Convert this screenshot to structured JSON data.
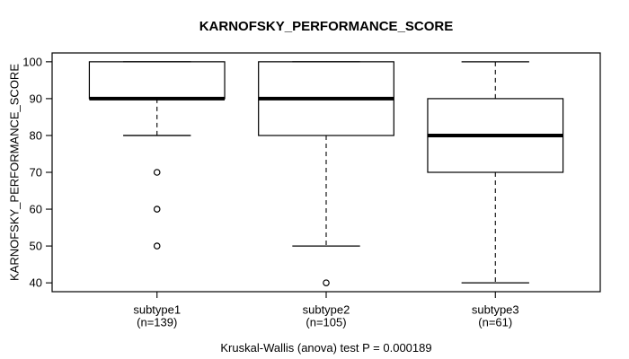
{
  "chart_data": {
    "type": "boxplot",
    "title": "KARNOFSKY_PERFORMANCE_SCORE",
    "ylabel": "KARNOFSKY_PERFORMANCE_SCORE",
    "xlabel": "",
    "caption": "Kruskal-Wallis (anova) test P = 0.000189",
    "y_ticks": [
      40,
      50,
      60,
      70,
      80,
      90,
      100
    ],
    "ylim": [
      40,
      100
    ],
    "axis_pad_frac": 0.04,
    "grid": false,
    "legend": null,
    "groups": [
      {
        "label": "subtype1",
        "sublabel": "(n=139)",
        "n": 139,
        "q1": 90,
        "median": 90,
        "q3": 100,
        "whisker_low": 80,
        "whisker_high": 100,
        "outliers": [
          70,
          60,
          50
        ]
      },
      {
        "label": "subtype2",
        "sublabel": "(n=105)",
        "n": 105,
        "q1": 80,
        "median": 90,
        "q3": 100,
        "whisker_low": 50,
        "whisker_high": 100,
        "outliers": [
          40
        ]
      },
      {
        "label": "subtype3",
        "sublabel": "(n=61)",
        "n": 61,
        "q1": 70,
        "median": 80,
        "q3": 90,
        "whisker_low": 40,
        "whisker_high": 100,
        "outliers": []
      }
    ],
    "colors": {
      "foreground": "#000000",
      "box_fill": "#ffffff",
      "background": "#ffffff"
    }
  }
}
